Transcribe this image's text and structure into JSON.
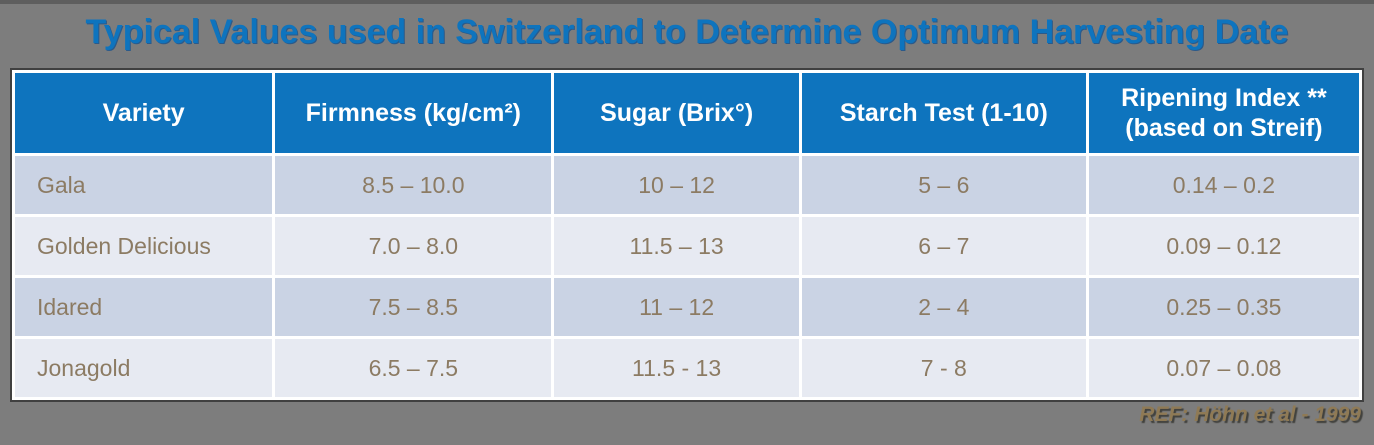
{
  "slide": {
    "title": "Typical Values used in Switzerland to Determine Optimum Harvesting Date",
    "reference": "REF: Höhn et al - 1999"
  },
  "table": {
    "header": {
      "variety": "Variety",
      "firmness": "Firmness (kg/cm²)",
      "sugar": "Sugar (Brix°)",
      "starch": "Starch Test (1-10)",
      "ripening_line1": "Ripening Index **",
      "ripening_line2": "(based on Streif)"
    },
    "rows": [
      {
        "variety": "Gala",
        "firmness": "8.5 – 10.0",
        "sugar": "10 – 12",
        "starch": "5 – 6",
        "ripening": "0.14 – 0.2"
      },
      {
        "variety": "Golden Delicious",
        "firmness": "7.0 – 8.0",
        "sugar": "11.5 – 13",
        "starch": "6 – 7",
        "ripening": "0.09 – 0.12"
      },
      {
        "variety": "Idared",
        "firmness": "7.5 – 8.5",
        "sugar": "11 – 12",
        "starch": "2 – 4",
        "ripening": "0.25 – 0.35"
      },
      {
        "variety": "Jonagold",
        "firmness": "6.5 – 7.5",
        "sugar": "11.5 - 13",
        "starch": "7 - 8",
        "ripening": "0.07 – 0.08"
      }
    ]
  },
  "colors": {
    "background": "#7d7d7d",
    "header_blue": "#0e74be",
    "title_blue": "#0e74be",
    "row_odd": "#cad3e4",
    "row_even": "#e7eaf2",
    "cell_text": "#8c7b63",
    "reference_text": "#8f7a55"
  },
  "chart_data": {
    "type": "table",
    "title": "Typical Values used in Switzerland to Determine Optimum Harvesting Date",
    "columns": [
      "Variety",
      "Firmness (kg/cm²)",
      "Sugar (Brix°)",
      "Starch Test (1-10)",
      "Ripening Index ** (based on Streif)"
    ],
    "rows": [
      [
        "Gala",
        "8.5 – 10.0",
        "10 – 12",
        "5 – 6",
        "0.14 – 0.2"
      ],
      [
        "Golden Delicious",
        "7.0 – 8.0",
        "11.5 – 13",
        "6 – 7",
        "0.09 – 0.12"
      ],
      [
        "Idared",
        "7.5 – 8.5",
        "11 – 12",
        "2 – 4",
        "0.25 – 0.35"
      ],
      [
        "Jonagold",
        "6.5 – 7.5",
        "11.5 - 13",
        "7 - 8",
        "0.07 – 0.08"
      ]
    ]
  }
}
